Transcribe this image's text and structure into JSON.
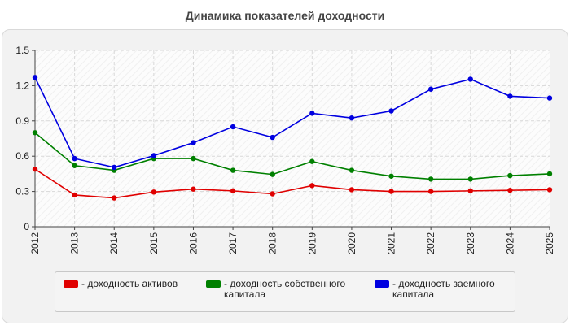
{
  "chart_data": {
    "type": "line",
    "title": "Динамика показателей доходности",
    "x": [
      "2012",
      "2013",
      "2014",
      "2015",
      "2016",
      "2017",
      "2018",
      "2019",
      "2020",
      "2021",
      "2022",
      "2023",
      "2024",
      "2025"
    ],
    "ylim": [
      0,
      1.5
    ],
    "yticks": [
      "0",
      "0.3",
      "0.6",
      "0.9",
      "1.2",
      "1.5"
    ],
    "grid": true,
    "legend": "bottom",
    "series": [
      {
        "name": "- доходность активов",
        "color": "#e00000",
        "values": [
          0.49,
          0.27,
          0.245,
          0.295,
          0.32,
          0.305,
          0.28,
          0.35,
          0.315,
          0.3,
          0.3,
          0.305,
          0.31,
          0.315
        ]
      },
      {
        "name": "- доходность собственного капитала",
        "color": "#008000",
        "values": [
          0.8,
          0.52,
          0.48,
          0.58,
          0.58,
          0.48,
          0.445,
          0.555,
          0.48,
          0.43,
          0.405,
          0.405,
          0.435,
          0.45
        ]
      },
      {
        "name": "- доходность заемного капитала",
        "color": "#0000e0",
        "values": [
          1.27,
          0.58,
          0.505,
          0.605,
          0.715,
          0.85,
          0.76,
          0.965,
          0.925,
          0.985,
          1.17,
          1.255,
          1.11,
          1.095
        ]
      }
    ]
  }
}
